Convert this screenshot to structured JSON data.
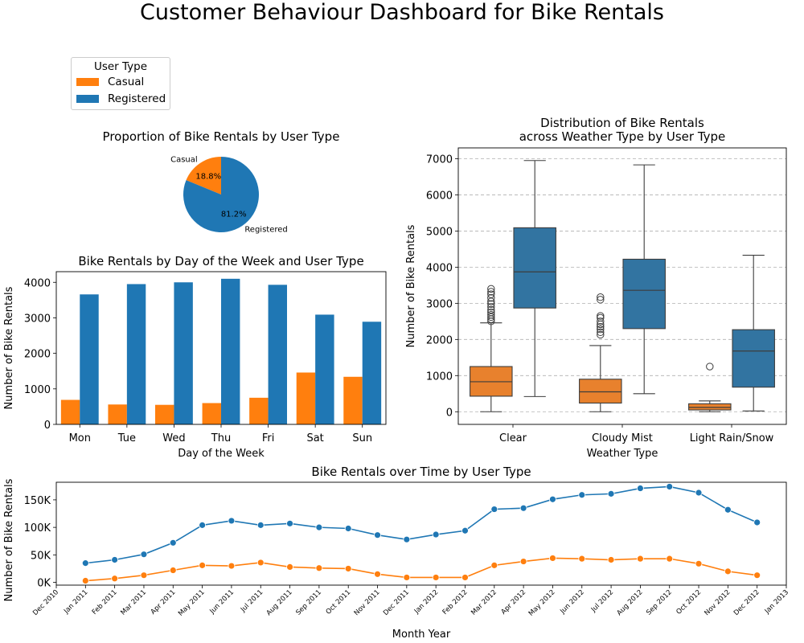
{
  "title": "Customer Behaviour Dashboard for Bike Rentals",
  "legend": {
    "title": "User Type",
    "items": [
      {
        "label": "Casual",
        "color": "#ff7f0e"
      },
      {
        "label": "Registered",
        "color": "#1f77b4"
      }
    ]
  },
  "colors": {
    "casual": "#ff7f0e",
    "registered": "#1f77b4",
    "casual_box": "#e8812d",
    "registered_box": "#3274a1"
  },
  "chart_data": [
    {
      "type": "pie",
      "title": "Proportion of Bike Rentals by User Type",
      "slices": [
        {
          "label": "Casual",
          "value": 18.8,
          "pct_label": "18.8%"
        },
        {
          "label": "Registered",
          "value": 81.2,
          "pct_label": "81.2%"
        }
      ]
    },
    {
      "type": "bar",
      "title": "Bike Rentals by Day of the Week and User Type",
      "xlabel": "Day of the Week",
      "ylabel": "Number of Bike Rentals",
      "categories": [
        "Mon",
        "Tue",
        "Wed",
        "Thu",
        "Fri",
        "Sat",
        "Sun"
      ],
      "series": [
        {
          "name": "Casual",
          "values": [
            690,
            560,
            550,
            600,
            750,
            1460,
            1340
          ]
        },
        {
          "name": "Registered",
          "values": [
            3660,
            3950,
            4000,
            4100,
            3930,
            3090,
            2890
          ]
        }
      ],
      "ylim": [
        0,
        4300
      ],
      "yticks": [
        0,
        1000,
        2000,
        3000,
        4000
      ],
      "ytick_labels": [
        "0",
        "1000",
        "2000",
        "3000",
        "4000"
      ]
    },
    {
      "type": "box",
      "title_lines": [
        "Distribution of Bike Rentals",
        "across Weather Type by User Type"
      ],
      "xlabel": "Weather Type",
      "ylabel": "Number of Bike Rentals",
      "categories": [
        "Clear",
        "Cloudy Mist",
        "Light Rain/Snow"
      ],
      "series": [
        {
          "name": "Casual",
          "boxes": [
            {
              "min": 0,
              "q1": 430,
              "median": 830,
              "q3": 1250,
              "max": 2460,
              "outliers": [
                2500,
                2560,
                2620,
                2680,
                2750,
                2820,
                2900,
                2980,
                3050,
                3150,
                3250,
                3320,
                3400
              ]
            },
            {
              "min": 0,
              "q1": 240,
              "median": 550,
              "q3": 900,
              "max": 1830,
              "outliers": [
                2130,
                2200,
                2280,
                2350,
                2420,
                2500,
                2600,
                2650,
                3100,
                3170
              ]
            },
            {
              "min": 0,
              "q1": 50,
              "median": 120,
              "q3": 220,
              "max": 300,
              "outliers": [
                1250
              ]
            }
          ]
        },
        {
          "name": "Registered",
          "boxes": [
            {
              "min": 420,
              "q1": 2870,
              "median": 3870,
              "q3": 5090,
              "max": 6950,
              "outliers": []
            },
            {
              "min": 500,
              "q1": 2300,
              "median": 3360,
              "q3": 4220,
              "max": 6830,
              "outliers": []
            },
            {
              "min": 20,
              "q1": 680,
              "median": 1680,
              "q3": 2270,
              "max": 4330,
              "outliers": []
            }
          ]
        }
      ],
      "ylim": [
        -350,
        7300
      ],
      "yticks": [
        0,
        1000,
        2000,
        3000,
        4000,
        5000,
        6000,
        7000
      ],
      "ytick_labels": [
        "0",
        "1000",
        "2000",
        "3000",
        "4000",
        "5000",
        "6000",
        "7000"
      ],
      "grid": "y dashed"
    },
    {
      "type": "line",
      "title": "Bike Rentals over Time by User Type",
      "xlabel": "Month Year",
      "ylabel": "Number of Bike Rentals",
      "x": [
        "Jan 2011",
        "Feb 2011",
        "Mar 2011",
        "Apr 2011",
        "May 2011",
        "Jun 2011",
        "Jul 2011",
        "Aug 2011",
        "Sep 2011",
        "Oct 2011",
        "Nov 2011",
        "Dec 2011",
        "Jan 2012",
        "Feb 2012",
        "Mar 2012",
        "Apr 2012",
        "May 2012",
        "Jun 2012",
        "Jul 2012",
        "Aug 2012",
        "Sep 2012",
        "Oct 2012",
        "Nov 2012",
        "Dec 2012"
      ],
      "xtick_labels": [
        "Dec 2010",
        "Jan 2011",
        "Feb 2011",
        "Mar 2011",
        "Apr 2011",
        "May 2011",
        "Jun 2011",
        "Jul 2011",
        "Aug 2011",
        "Sep 2011",
        "Oct 2011",
        "Nov 2011",
        "Dec 2011",
        "Jan 2012",
        "Feb 2012",
        "Mar 2012",
        "Apr 2012",
        "May 2012",
        "Jun 2012",
        "Jul 2012",
        "Aug 2012",
        "Sep 2012",
        "Oct 2012",
        "Nov 2012",
        "Dec 2012",
        "Jan 2013"
      ],
      "series": [
        {
          "name": "Registered",
          "values": [
            35000,
            41000,
            51000,
            72000,
            104000,
            112000,
            104000,
            107000,
            100000,
            98000,
            86000,
            78000,
            87000,
            94000,
            133000,
            135000,
            151000,
            159000,
            161000,
            171000,
            174000,
            163000,
            132000,
            109000
          ]
        },
        {
          "name": "Casual",
          "values": [
            3000,
            7000,
            13000,
            22000,
            31000,
            30000,
            36000,
            28000,
            26000,
            25000,
            15000,
            9000,
            9000,
            9000,
            31000,
            38000,
            44000,
            43000,
            41000,
            43000,
            43000,
            34000,
            20000,
            13000
          ]
        }
      ],
      "ylim": [
        -5000,
        182000
      ],
      "yticks": [
        0,
        50000,
        100000,
        150000
      ],
      "ytick_labels": [
        "0K",
        "50K",
        "100K",
        "150K"
      ]
    }
  ]
}
